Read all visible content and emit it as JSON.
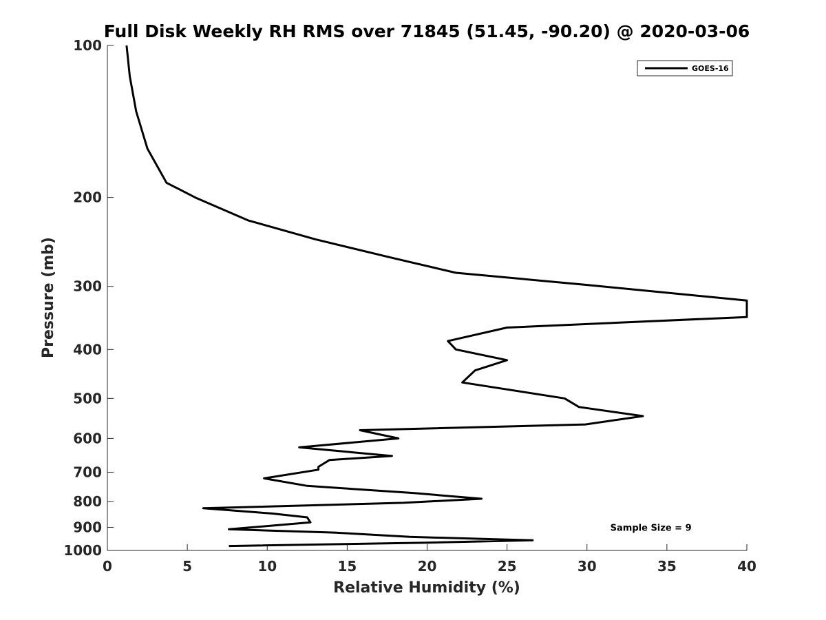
{
  "chart_data": {
    "type": "line",
    "title": "Full Disk Weekly RH RMS over 71845 (51.45, -90.20) @ 2020-03-06",
    "xlabel": "Relative Humidity (%)",
    "ylabel": "Pressure (mb)",
    "xlim": [
      0,
      40
    ],
    "ylim": [
      100,
      1000
    ],
    "y_scale": "log",
    "y_reversed": true,
    "x_ticks": [
      0,
      5,
      10,
      15,
      20,
      25,
      30,
      35,
      40
    ],
    "y_ticks": [
      100,
      200,
      300,
      400,
      500,
      600,
      700,
      800,
      900,
      1000
    ],
    "grid": false,
    "legend": "top-right",
    "series": [
      {
        "name": "GOES-16",
        "color": "#000000",
        "points": [
          [
            1.2,
            100
          ],
          [
            1.4,
            115
          ],
          [
            1.8,
            135
          ],
          [
            2.5,
            160
          ],
          [
            3.7,
            187
          ],
          [
            5.5,
            200
          ],
          [
            8.8,
            222
          ],
          [
            13.0,
            242
          ],
          [
            17.5,
            262
          ],
          [
            21.8,
            282
          ],
          [
            30.0,
            298
          ],
          [
            40.0,
            320
          ],
          [
            40.0,
            345
          ],
          [
            25.0,
            362
          ],
          [
            21.3,
            385
          ],
          [
            21.8,
            400
          ],
          [
            25.0,
            420
          ],
          [
            23.0,
            440
          ],
          [
            22.2,
            465
          ],
          [
            28.6,
            500
          ],
          [
            29.5,
            520
          ],
          [
            33.5,
            542
          ],
          [
            29.9,
            563
          ],
          [
            15.8,
            578
          ],
          [
            18.2,
            600
          ],
          [
            12.0,
            625
          ],
          [
            17.8,
            650
          ],
          [
            13.9,
            662
          ],
          [
            13.2,
            683
          ],
          [
            13.2,
            692
          ],
          [
            9.8,
            720
          ],
          [
            12.5,
            745
          ],
          [
            19.2,
            770
          ],
          [
            23.4,
            790
          ],
          [
            18.5,
            805
          ],
          [
            6.0,
            825
          ],
          [
            10.3,
            845
          ],
          [
            12.5,
            860
          ],
          [
            12.7,
            880
          ],
          [
            7.6,
            908
          ],
          [
            14.2,
            922
          ],
          [
            18.9,
            940
          ],
          [
            26.6,
            955
          ],
          [
            20.0,
            965
          ],
          [
            7.6,
            980
          ]
        ]
      }
    ],
    "annotations": [
      {
        "text": "Sample Size = 9",
        "x": 34,
        "y": 900
      }
    ]
  }
}
